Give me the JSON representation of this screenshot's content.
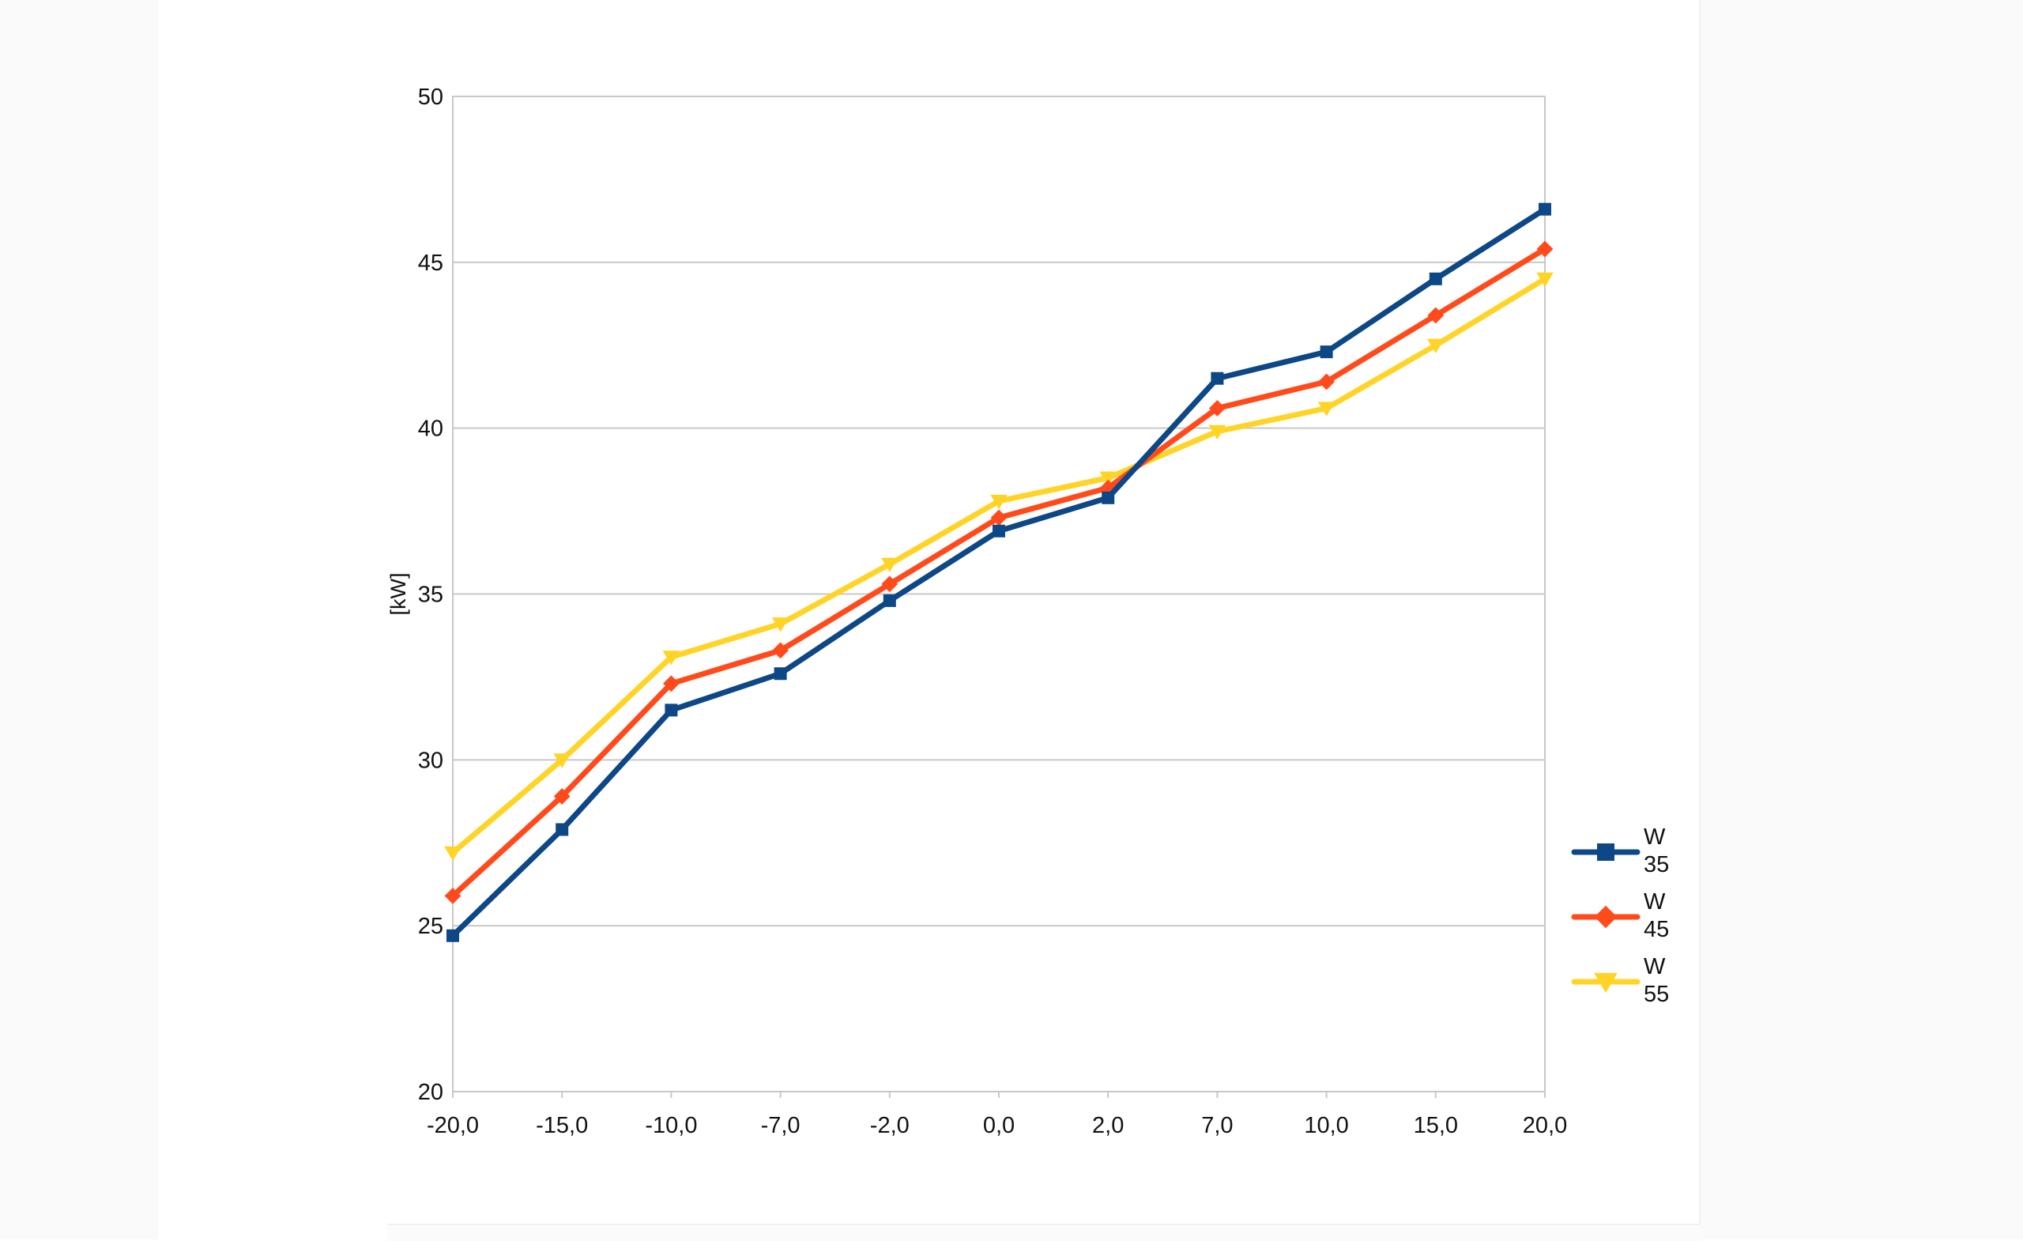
{
  "chart_data": {
    "type": "line",
    "title": "",
    "xlabel": "",
    "ylabel": "[kW]",
    "categories": [
      "-20,0",
      "-15,0",
      "-10,0",
      "-7,0",
      "-2,0",
      "0,0",
      "2,0",
      "7,0",
      "10,0",
      "15,0",
      "20,0"
    ],
    "ylim": [
      20,
      50
    ],
    "yticks": [
      "20",
      "25",
      "30",
      "35",
      "40",
      "45",
      "50"
    ],
    "grid": "horizontal",
    "legend_position": "right",
    "series": [
      {
        "name": "W 35",
        "label_lines": [
          "W",
          "35"
        ],
        "color": "#0d4786",
        "marker": "square",
        "values": [
          24.7,
          27.9,
          31.5,
          32.6,
          34.8,
          36.9,
          37.9,
          41.5,
          42.3,
          44.5,
          46.6
        ]
      },
      {
        "name": "W 45",
        "label_lines": [
          "W",
          "45"
        ],
        "color": "#ff4a1c",
        "marker": "diamond",
        "values": [
          25.9,
          28.9,
          32.3,
          33.3,
          35.3,
          37.3,
          38.2,
          40.6,
          41.4,
          43.4,
          45.4
        ]
      },
      {
        "name": "W 55",
        "label_lines": [
          "W",
          "55"
        ],
        "color": "#ffd426",
        "marker": "triangle-down",
        "values": [
          27.2,
          30.0,
          33.1,
          34.1,
          35.9,
          37.8,
          38.5,
          39.9,
          40.6,
          42.5,
          44.5
        ]
      }
    ]
  }
}
